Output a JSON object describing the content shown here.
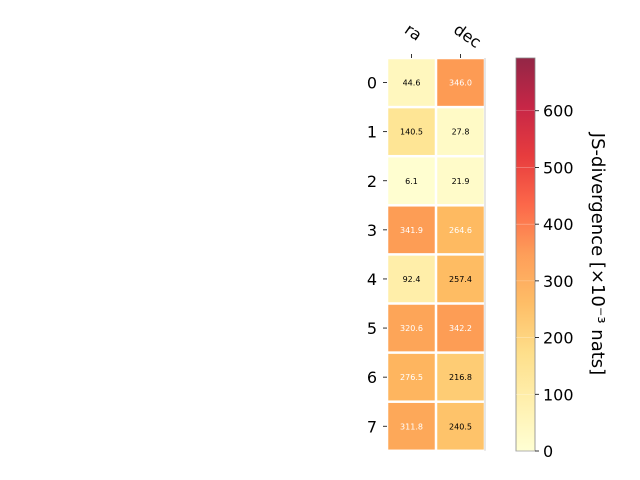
{
  "chart_data": {
    "type": "heatmap",
    "columns": [
      "ra",
      "dec"
    ],
    "rows": [
      "0",
      "1",
      "2",
      "3",
      "4",
      "5",
      "6",
      "7"
    ],
    "values": [
      [
        44.6,
        346.0
      ],
      [
        140.5,
        27.8
      ],
      [
        6.1,
        21.9
      ],
      [
        341.9,
        264.6
      ],
      [
        92.4,
        257.4
      ],
      [
        320.6,
        342.2
      ],
      [
        276.5,
        216.8
      ],
      [
        311.8,
        240.5
      ]
    ],
    "cell_labels": [
      [
        "44.6",
        "346.0"
      ],
      [
        "140.5",
        "27.8"
      ],
      [
        "6.1",
        "21.9"
      ],
      [
        "341.9",
        "264.6"
      ],
      [
        "92.4",
        "257.4"
      ],
      [
        "320.6",
        "342.2"
      ],
      [
        "276.5",
        "216.8"
      ],
      [
        "311.8",
        "240.5"
      ]
    ],
    "colorbar": {
      "label": "JS-divergence [×10⁻³ nats]",
      "range": [
        0,
        693
      ],
      "ticks": [
        0,
        100,
        200,
        300,
        400,
        500,
        600
      ],
      "tick_labels": [
        "0",
        "100",
        "200",
        "300",
        "400",
        "500",
        "600"
      ],
      "colormap": "YlOrRd"
    },
    "grid": false,
    "legend": "colorbar-right"
  }
}
